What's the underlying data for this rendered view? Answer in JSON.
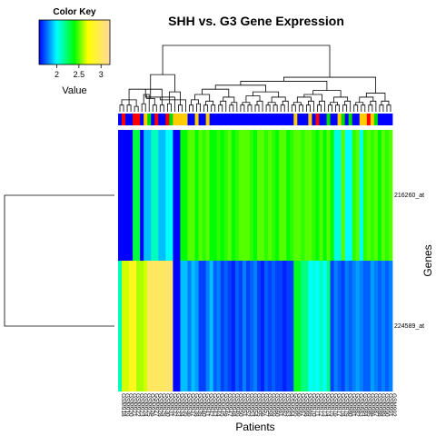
{
  "chart_data": {
    "type": "heatmap",
    "title": "SHH vs. G3 Gene Expression",
    "xlabel": "Patients",
    "ylabel": "Genes",
    "rows": [
      "216260_at",
      "224589_at"
    ],
    "values": [
      [
        1.6,
        1.6,
        1.6,
        1.6,
        2.3,
        2.3,
        1.6,
        1.9,
        1.9,
        2.1,
        2.1,
        1.9,
        1.9,
        2.0,
        2.0,
        1.6,
        1.6,
        2.4,
        2.4,
        2.5,
        2.5,
        2.4,
        2.5,
        2.45,
        2.5,
        2.4,
        2.4,
        2.45,
        2.4,
        2.45,
        2.5,
        2.4,
        2.45,
        2.5,
        2.5,
        2.5,
        2.45,
        2.4,
        2.5,
        2.5,
        2.45,
        2.5,
        2.45,
        2.4,
        2.5,
        2.5,
        2.4,
        2.45,
        2.5,
        2.5,
        2.45,
        2.5,
        2.5,
        2.45,
        2.4,
        2.5,
        2.4,
        2.5,
        2.4,
        2.05,
        2.05,
        2.5,
        2.0,
        2.0,
        2.45,
        2.5,
        2.0,
        2.45,
        2.5,
        2.45,
        2.5,
        2.4,
        2.5,
        2.45,
        2.5
      ],
      [
        2.1,
        2.65,
        2.65,
        2.8,
        2.8,
        2.6,
        2.6,
        2.65,
        3.0,
        3.0,
        3.0,
        3.0,
        3.0,
        3.05,
        3.05,
        1.6,
        1.6,
        1.9,
        1.9,
        1.8,
        1.9,
        1.85,
        1.7,
        1.7,
        1.8,
        1.9,
        1.75,
        1.8,
        1.7,
        1.75,
        1.7,
        1.65,
        1.75,
        1.7,
        1.8,
        1.7,
        1.75,
        1.8,
        1.7,
        1.65,
        1.75,
        1.7,
        1.75,
        1.7,
        1.7,
        1.65,
        1.7,
        1.7,
        2.35,
        2.35,
        2.2,
        2.2,
        2.0,
        2.05,
        2.0,
        2.1,
        2.0,
        2.2,
        1.7,
        1.8,
        1.75,
        1.7,
        1.8,
        1.75,
        1.8,
        1.85,
        1.8,
        1.75,
        1.75,
        1.85,
        1.8,
        1.75,
        1.8,
        1.75,
        1.8
      ]
    ],
    "col_groups": [
      "blue",
      "red",
      "blue",
      "blue",
      "red",
      "red",
      "blue",
      "yellow",
      "green",
      "blue",
      "red",
      "blue",
      "blue",
      "red",
      "green",
      "yellow",
      "yellow",
      "yellow",
      "yellow",
      "blue",
      "blue",
      "yellow",
      "blue",
      "blue",
      "yellow",
      "blue",
      "blue",
      "blue",
      "blue",
      "blue",
      "blue",
      "blue",
      "blue",
      "blue",
      "blue",
      "blue",
      "blue",
      "blue",
      "blue",
      "blue",
      "blue",
      "blue",
      "blue",
      "blue",
      "blue",
      "blue",
      "blue",
      "blue",
      "yellow",
      "blue",
      "blue",
      "blue",
      "yellow",
      "blue",
      "red",
      "blue",
      "blue",
      "green",
      "blue",
      "blue",
      "yellow",
      "green",
      "blue",
      "green",
      "blue",
      "blue",
      "yellow",
      "yellow",
      "red",
      "yellow",
      "green",
      "blue",
      "blue",
      "blue",
      "blue"
    ],
    "group_colors": {
      "blue": "#0000ff",
      "red": "#ff0000",
      "yellow": "#ffcc00",
      "green": "#00dd00"
    },
    "col_labels": [
      "GSM918",
      "GSM919",
      "GSM920",
      "GSM921",
      "GSM922",
      "GSM923",
      "GSM924",
      "GSM925",
      "GSM926",
      "GSM927",
      "GSM928",
      "GSM929",
      "GSM930",
      "GSM931",
      "GSM932",
      "GSM933",
      "GSM934",
      "GSM935",
      "GSM936",
      "GSM937",
      "GSM938",
      "GSM939",
      "GSM940",
      "GSM941",
      "GSM942",
      "GSM943",
      "GSM944",
      "GSM945",
      "GSM946",
      "GSM947",
      "GSM948",
      "GSM949",
      "GSM950",
      "GSM951",
      "GSM952",
      "GSM953",
      "GSM954",
      "GSM955",
      "GSM956",
      "GSM957",
      "GSM958",
      "GSM959",
      "GSM960",
      "GSM961",
      "GSM962",
      "GSM963",
      "GSM964",
      "GSM965",
      "GSM966",
      "GSM967",
      "GSM968",
      "GSM969",
      "GSM970",
      "GSM971",
      "GSM972",
      "GSM973",
      "GSM974",
      "GSM975",
      "GSM976",
      "GSM977",
      "GSM978",
      "GSM979",
      "GSM980",
      "GSM981",
      "GSM982",
      "GSM983",
      "GSM984",
      "GSM985",
      "GSM986",
      "GSM987",
      "GSM988",
      "GSM989",
      "GSM990",
      "GSM991",
      "GSM992"
    ],
    "value_range": [
      1.6,
      3.2
    ],
    "color_stops": [
      {
        "v": 1.6,
        "color": "#0000ff"
      },
      {
        "v": 2.0,
        "color": "#00ffff"
      },
      {
        "v": 2.4,
        "color": "#00ff00"
      },
      {
        "v": 2.7,
        "color": "#ffff00"
      },
      {
        "v": 3.2,
        "color": "#ffd9a0"
      }
    ],
    "color_key": {
      "title": "Color Key",
      "xlabel": "Value",
      "ticks": [
        {
          "v": 2.0,
          "label": "2"
        },
        {
          "v": 2.5,
          "label": "2.5"
        },
        {
          "v": 3.0,
          "label": "3"
        }
      ]
    },
    "col_dendrogram": [
      [
        4,
        5
      ],
      [
        0,
        1
      ],
      [
        2,
        3
      ],
      [
        100,
        101
      ],
      [
        6,
        7
      ],
      [
        102,
        103
      ],
      [
        104,
        8
      ],
      [
        9,
        10
      ],
      [
        11,
        12
      ],
      [
        106,
        107
      ],
      [
        105,
        108
      ],
      [
        13,
        14
      ],
      [
        110,
        15
      ],
      [
        16,
        17
      ],
      [
        112,
        18
      ],
      [
        111,
        113
      ],
      [
        109,
        115
      ],
      [
        19,
        20
      ],
      [
        21,
        22
      ],
      [
        117,
        118
      ],
      [
        23,
        24
      ],
      [
        25,
        26
      ],
      [
        120,
        121
      ],
      [
        119,
        122
      ],
      [
        27,
        28
      ],
      [
        124,
        29
      ],
      [
        30,
        31
      ],
      [
        126,
        32
      ],
      [
        125,
        127
      ],
      [
        123,
        128
      ],
      [
        33,
        34
      ],
      [
        35,
        36
      ],
      [
        130,
        131
      ],
      [
        37,
        38
      ],
      [
        133,
        39
      ],
      [
        132,
        134
      ],
      [
        40,
        41
      ],
      [
        42,
        43
      ],
      [
        136,
        137
      ],
      [
        44,
        45
      ],
      [
        139,
        46
      ],
      [
        138,
        140
      ],
      [
        135,
        141
      ],
      [
        129,
        142
      ],
      [
        47,
        48
      ],
      [
        49,
        50
      ],
      [
        144,
        145
      ],
      [
        51,
        52
      ],
      [
        147,
        53
      ],
      [
        146,
        148
      ],
      [
        54,
        55
      ],
      [
        150,
        56
      ],
      [
        149,
        151
      ],
      [
        57,
        58
      ],
      [
        59,
        60
      ],
      [
        153,
        154
      ],
      [
        61,
        62
      ],
      [
        156,
        63
      ],
      [
        155,
        157
      ],
      [
        152,
        158
      ],
      [
        143,
        159
      ],
      [
        64,
        65
      ],
      [
        66,
        67
      ],
      [
        161,
        162
      ],
      [
        68,
        69
      ],
      [
        164,
        70
      ],
      [
        163,
        165
      ],
      [
        71,
        72
      ],
      [
        73,
        74
      ],
      [
        167,
        168
      ],
      [
        166,
        169
      ],
      [
        160,
        170
      ],
      [
        116,
        171
      ]
    ],
    "col_merge_heights": [
      0.08,
      0.1,
      0.1,
      0.18,
      0.12,
      0.2,
      0.26,
      0.1,
      0.1,
      0.2,
      0.34,
      0.12,
      0.22,
      0.1,
      0.18,
      0.3,
      0.56,
      0.1,
      0.12,
      0.18,
      0.1,
      0.1,
      0.16,
      0.26,
      0.1,
      0.16,
      0.1,
      0.14,
      0.22,
      0.34,
      0.1,
      0.1,
      0.14,
      0.1,
      0.16,
      0.24,
      0.1,
      0.1,
      0.14,
      0.1,
      0.16,
      0.22,
      0.3,
      0.4,
      0.1,
      0.1,
      0.14,
      0.1,
      0.16,
      0.22,
      0.1,
      0.16,
      0.26,
      0.1,
      0.1,
      0.14,
      0.1,
      0.16,
      0.22,
      0.32,
      0.46,
      0.1,
      0.1,
      0.14,
      0.1,
      0.16,
      0.22,
      0.1,
      0.1,
      0.16,
      0.28,
      0.52,
      1.0
    ],
    "row_dendrogram": [
      [
        0,
        1
      ]
    ],
    "row_merge_heights": [
      1.0
    ]
  }
}
